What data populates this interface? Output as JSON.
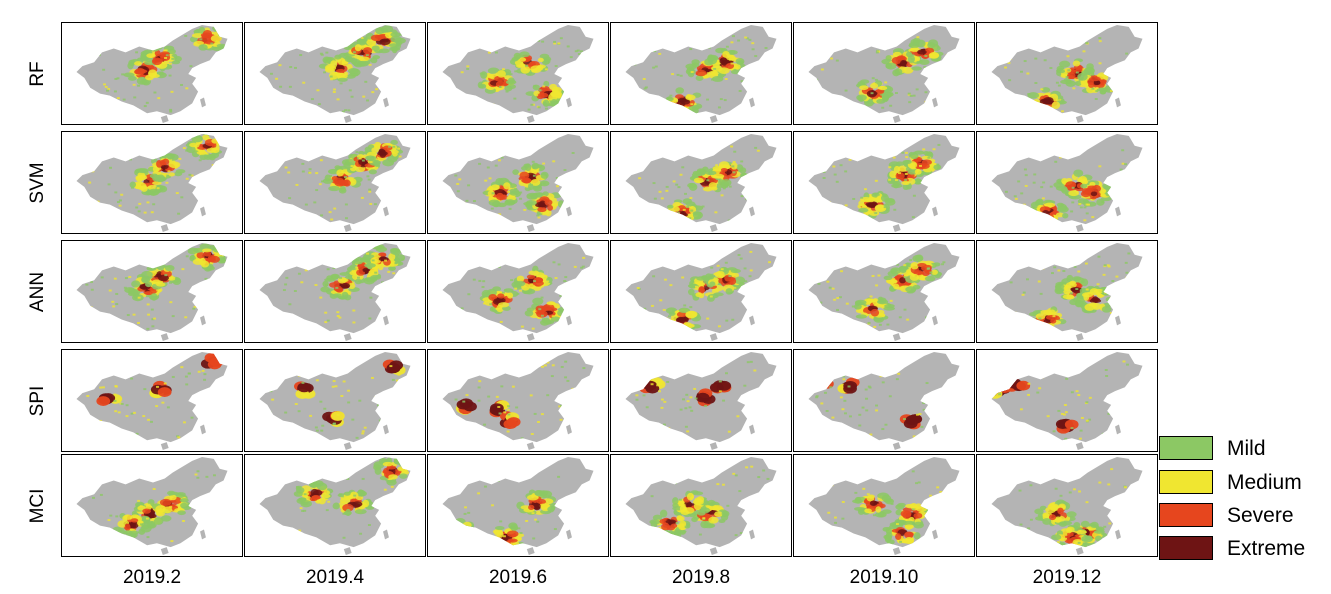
{
  "rows": [
    {
      "label": "RF"
    },
    {
      "label": "SVM"
    },
    {
      "label": "ANN"
    },
    {
      "label": "SPI"
    },
    {
      "label": "MCI"
    }
  ],
  "columns": [
    {
      "label": "2019.2"
    },
    {
      "label": "2019.4"
    },
    {
      "label": "2019.6"
    },
    {
      "label": "2019.8"
    },
    {
      "label": "2019.10"
    },
    {
      "label": "2019.12"
    }
  ],
  "legend": {
    "items": [
      {
        "label": "Mild",
        "color": "#8cc864"
      },
      {
        "label": "Medium",
        "color": "#f0e630"
      },
      {
        "label": "Severe",
        "color": "#e6461e"
      },
      {
        "label": "Extreme",
        "color": "#6e1414"
      }
    ]
  },
  "map_colors": {
    "background_land": "#b4b4b4"
  }
}
